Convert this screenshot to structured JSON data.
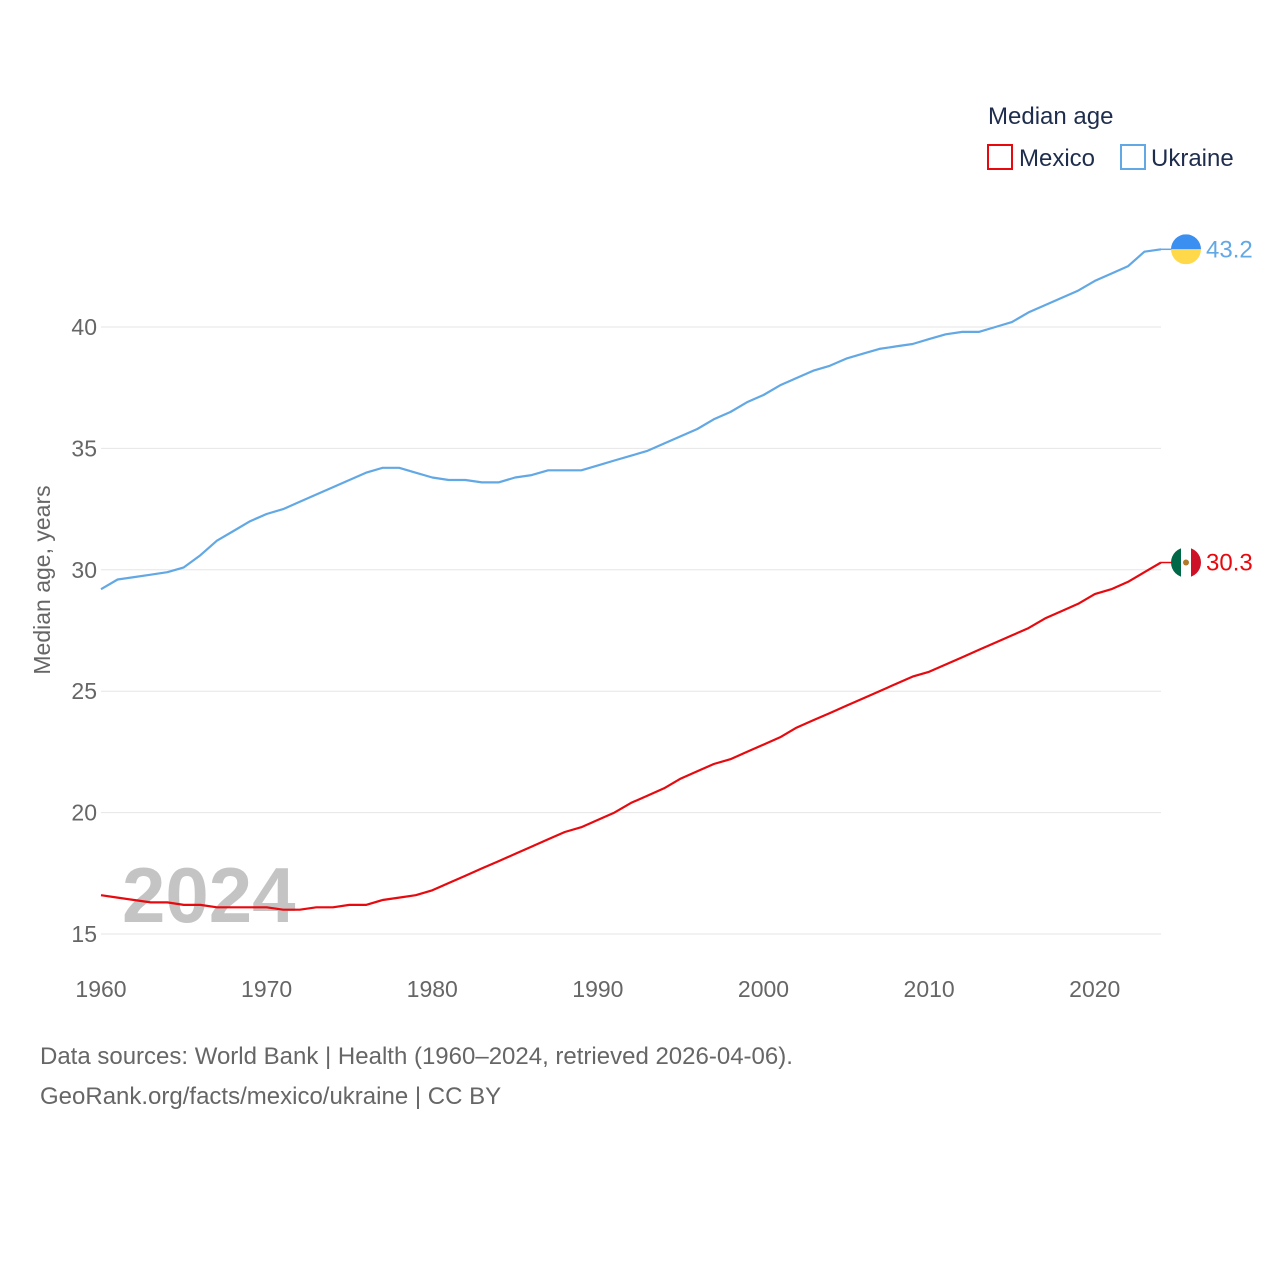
{
  "chart_data": {
    "type": "line",
    "title": "Median age",
    "ylabel": "Median age, years",
    "xlabel": "",
    "xlim": [
      1960,
      2024
    ],
    "ylim": [
      15,
      43.2
    ],
    "x_ticks": [
      1960,
      1970,
      1980,
      1990,
      2000,
      2010,
      2020
    ],
    "y_ticks": [
      15,
      20,
      25,
      30,
      35,
      40
    ],
    "year_label": "2024",
    "legend": [
      "Mexico",
      "Ukraine"
    ],
    "x": [
      1960,
      1961,
      1962,
      1963,
      1964,
      1965,
      1966,
      1967,
      1968,
      1969,
      1970,
      1971,
      1972,
      1973,
      1974,
      1975,
      1976,
      1977,
      1978,
      1979,
      1980,
      1981,
      1982,
      1983,
      1984,
      1985,
      1986,
      1987,
      1988,
      1989,
      1990,
      1991,
      1992,
      1993,
      1994,
      1995,
      1996,
      1997,
      1998,
      1999,
      2000,
      2001,
      2002,
      2003,
      2004,
      2005,
      2006,
      2007,
      2008,
      2009,
      2010,
      2011,
      2012,
      2013,
      2014,
      2015,
      2016,
      2017,
      2018,
      2019,
      2020,
      2021,
      2022,
      2023,
      2024
    ],
    "series": [
      {
        "name": "Mexico",
        "color": "#e8090e",
        "end_label": "30.3",
        "values": [
          16.6,
          16.5,
          16.4,
          16.3,
          16.3,
          16.2,
          16.2,
          16.1,
          16.1,
          16.1,
          16.1,
          16.0,
          16.0,
          16.1,
          16.1,
          16.2,
          16.2,
          16.4,
          16.5,
          16.6,
          16.8,
          17.1,
          17.4,
          17.7,
          18.0,
          18.3,
          18.6,
          18.9,
          19.2,
          19.4,
          19.7,
          20.0,
          20.4,
          20.7,
          21.0,
          21.4,
          21.7,
          22.0,
          22.2,
          22.5,
          22.8,
          23.1,
          23.5,
          23.8,
          24.1,
          24.4,
          24.7,
          25.0,
          25.3,
          25.6,
          25.8,
          26.1,
          26.4,
          26.7,
          27.0,
          27.3,
          27.6,
          28.0,
          28.3,
          28.6,
          29.0,
          29.2,
          29.5,
          29.9,
          30.3
        ]
      },
      {
        "name": "Ukraine",
        "color": "#62a8e5",
        "end_label": "43.2",
        "values": [
          29.2,
          29.6,
          29.7,
          29.8,
          29.9,
          30.1,
          30.6,
          31.2,
          31.6,
          32.0,
          32.3,
          32.5,
          32.8,
          33.1,
          33.4,
          33.7,
          34.0,
          34.2,
          34.2,
          34.0,
          33.8,
          33.7,
          33.7,
          33.6,
          33.6,
          33.8,
          33.9,
          34.1,
          34.1,
          34.1,
          34.3,
          34.5,
          34.7,
          34.9,
          35.2,
          35.5,
          35.8,
          36.2,
          36.5,
          36.9,
          37.2,
          37.6,
          37.9,
          38.2,
          38.4,
          38.7,
          38.9,
          39.1,
          39.2,
          39.3,
          39.5,
          39.7,
          39.8,
          39.8,
          40.0,
          40.2,
          40.6,
          40.9,
          41.2,
          41.5,
          41.9,
          42.2,
          42.5,
          43.1,
          43.2
        ]
      }
    ]
  },
  "footer": {
    "line1": "Data sources: World Bank | Health (1960–2024, retrieved 2026-04-06).",
    "line2": "GeoRank.org/facts/mexico/ukraine | CC BY"
  },
  "flags": {
    "mexico": [
      "#006847",
      "#ffffff",
      "#ce1126"
    ],
    "ukraine": [
      "#3a8ff0",
      "#ffd94a"
    ]
  }
}
